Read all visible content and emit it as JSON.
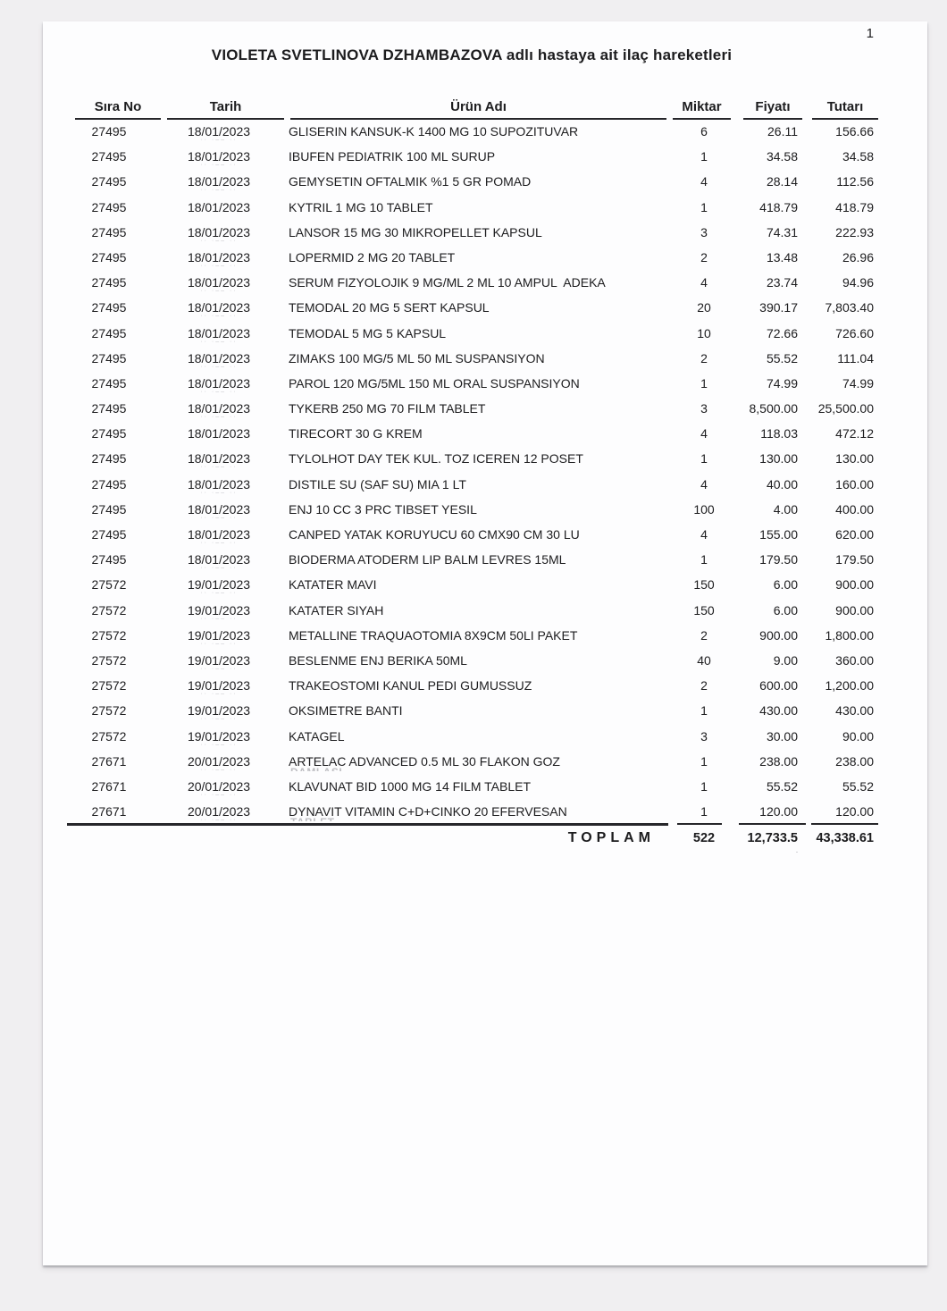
{
  "page": {
    "number": "1"
  },
  "document": {
    "title": "VIOLETA SVETLINOVA DZHAMBAZOVA adlı hastaya ait ilaç hareketleri"
  },
  "table": {
    "columns": {
      "sira": "Sıra No",
      "tarih": "Tarih",
      "urun": "Ürün Adı",
      "miktar": "Miktar",
      "fiyat": "Fiyatı",
      "tutar": "Tutarı"
    },
    "date_ghost": "·· ·–– ··",
    "rows": [
      {
        "sira": "27495",
        "tarih": "18/01/2023",
        "urun": "GLISERIN KANSUK-K 1400 MG 10 SUPOZITUVAR",
        "miktar": "6",
        "fiyat": "26.11",
        "tutar": "156.66",
        "ghost": true,
        "ghost2": ""
      },
      {
        "sira": "27495",
        "tarih": "18/01/2023",
        "urun": "IBUFEN PEDIATRIK 100 ML SURUP",
        "miktar": "1",
        "fiyat": "34.58",
        "tutar": "34.58",
        "ghost": true,
        "ghost2": ""
      },
      {
        "sira": "27495",
        "tarih": "18/01/2023",
        "urun": "GEMYSETIN OFTALMIK %1 5 GR POMAD",
        "miktar": "4",
        "fiyat": "28.14",
        "tutar": "112.56",
        "ghost": true,
        "ghost2": ""
      },
      {
        "sira": "27495",
        "tarih": "18/01/2023",
        "urun": "KYTRIL 1 MG 10 TABLET",
        "miktar": "1",
        "fiyat": "418.79",
        "tutar": "418.79",
        "ghost": false,
        "ghost2": ""
      },
      {
        "sira": "27495",
        "tarih": "18/01/2023",
        "urun": "LANSOR 15 MG 30 MIKROPELLET KAPSUL",
        "miktar": "3",
        "fiyat": "74.31",
        "tutar": "222.93",
        "ghost": true,
        "ghost2": ""
      },
      {
        "sira": "27495",
        "tarih": "18/01/2023",
        "urun": "LOPERMID 2 MG 20 TABLET",
        "miktar": "2",
        "fiyat": "13.48",
        "tutar": "26.96",
        "ghost": true,
        "ghost2": ""
      },
      {
        "sira": "27495",
        "tarih": "18/01/2023",
        "urun": "SERUM FIZYOLOJIK 9 MG/ML 2 ML 10 AMPUL  ADEKA",
        "miktar": "4",
        "fiyat": "23.74",
        "tutar": "94.96",
        "ghost": true,
        "ghost2": ""
      },
      {
        "sira": "27495",
        "tarih": "18/01/2023",
        "urun": "TEMODAL 20 MG 5 SERT KAPSUL",
        "miktar": "20",
        "fiyat": "390.17",
        "tutar": "7,803.40",
        "ghost": true,
        "ghost2": ""
      },
      {
        "sira": "27495",
        "tarih": "18/01/2023",
        "urun": "TEMODAL 5 MG 5 KAPSUL",
        "miktar": "10",
        "fiyat": "72.66",
        "tutar": "726.60",
        "ghost": true,
        "ghost2": ""
      },
      {
        "sira": "27495",
        "tarih": "18/01/2023",
        "urun": "ZIMAKS 100 MG/5 ML 50 ML SUSPANSIYON",
        "miktar": "2",
        "fiyat": "55.52",
        "tutar": "111.04",
        "ghost": true,
        "ghost2": ""
      },
      {
        "sira": "27495",
        "tarih": "18/01/2023",
        "urun": "PAROL 120 MG/5ML 150 ML ORAL SUSPANSIYON",
        "miktar": "1",
        "fiyat": "74.99",
        "tutar": "74.99",
        "ghost": true,
        "ghost2": ""
      },
      {
        "sira": "27495",
        "tarih": "18/01/2023",
        "urun": "TYKERB 250 MG 70 FILM TABLET",
        "miktar": "3",
        "fiyat": "8,500.00",
        "tutar": "25,500.00",
        "ghost": true,
        "ghost2": ""
      },
      {
        "sira": "27495",
        "tarih": "18/01/2023",
        "urun": "TIRECORT 30 G KREM",
        "miktar": "4",
        "fiyat": "118.03",
        "tutar": "472.12",
        "ghost": false,
        "ghost2": ""
      },
      {
        "sira": "27495",
        "tarih": "18/01/2023",
        "urun": "TYLOLHOT DAY TEK KUL. TOZ ICEREN 12 POSET",
        "miktar": "1",
        "fiyat": "130.00",
        "tutar": "130.00",
        "ghost": true,
        "ghost2": ""
      },
      {
        "sira": "27495",
        "tarih": "18/01/2023",
        "urun": "DISTILE SU (SAF SU) MIA 1 LT",
        "miktar": "4",
        "fiyat": "40.00",
        "tutar": "160.00",
        "ghost": true,
        "ghost2": ""
      },
      {
        "sira": "27495",
        "tarih": "18/01/2023",
        "urun": "ENJ 10 CC 3 PRC TIBSET YESIL",
        "miktar": "100",
        "fiyat": "4.00",
        "tutar": "400.00",
        "ghost": true,
        "ghost2": ""
      },
      {
        "sira": "27495",
        "tarih": "18/01/2023",
        "urun": "CANPED YATAK KORUYUCU 60 CMX90 CM 30 LU",
        "miktar": "4",
        "fiyat": "155.00",
        "tutar": "620.00",
        "ghost": true,
        "ghost2": ""
      },
      {
        "sira": "27495",
        "tarih": "18/01/2023",
        "urun": "BIODERMA ATODERM LIP BALM LEVRES 15ML",
        "miktar": "1",
        "fiyat": "179.50",
        "tutar": "179.50",
        "ghost": true,
        "ghost2": ""
      },
      {
        "sira": "27572",
        "tarih": "19/01/2023",
        "urun": "KATATER MAVI",
        "miktar": "150",
        "fiyat": "6.00",
        "tutar": "900.00",
        "ghost": true,
        "ghost2": ""
      },
      {
        "sira": "27572",
        "tarih": "19/01/2023",
        "urun": "KATATER SIYAH",
        "miktar": "150",
        "fiyat": "6.00",
        "tutar": "900.00",
        "ghost": true,
        "ghost2": ""
      },
      {
        "sira": "27572",
        "tarih": "19/01/2023",
        "urun": "METALLINE TRAQUAOTOMIA 8X9CM 50LI PAKET",
        "miktar": "2",
        "fiyat": "900.00",
        "tutar": "1,800.00",
        "ghost": true,
        "ghost2": ""
      },
      {
        "sira": "27572",
        "tarih": "19/01/2023",
        "urun": "BESLENME ENJ BERIKA 50ML",
        "miktar": "40",
        "fiyat": "9.00",
        "tutar": "360.00",
        "ghost": true,
        "ghost2": ""
      },
      {
        "sira": "27572",
        "tarih": "19/01/2023",
        "urun": "TRAKEOSTOMI KANUL PEDI GUMUSSUZ",
        "miktar": "2",
        "fiyat": "600.00",
        "tutar": "1,200.00",
        "ghost": true,
        "ghost2": ""
      },
      {
        "sira": "27572",
        "tarih": "19/01/2023",
        "urun": "OKSIMETRE BANTI",
        "miktar": "1",
        "fiyat": "430.00",
        "tutar": "430.00",
        "ghost": true,
        "ghost2": ""
      },
      {
        "sira": "27572",
        "tarih": "19/01/2023",
        "urun": "KATAGEL",
        "miktar": "3",
        "fiyat": "30.00",
        "tutar": "90.00",
        "ghost": true,
        "ghost2": ""
      },
      {
        "sira": "27671",
        "tarih": "20/01/2023",
        "urun": "ARTELAC ADVANCED 0.5 ML 30 FLAKON GOZ",
        "miktar": "1",
        "fiyat": "238.00",
        "tutar": "238.00",
        "ghost": true,
        "ghost2": "DAMLASI"
      },
      {
        "sira": "27671",
        "tarih": "20/01/2023",
        "urun": "KLAVUNAT BID 1000 MG 14 FILM TABLET",
        "miktar": "1",
        "fiyat": "55.52",
        "tutar": "55.52",
        "ghost": true,
        "ghost2": ""
      },
      {
        "sira": "27671",
        "tarih": "20/01/2023",
        "urun": "DYNAVIT VITAMIN C+D+CINKO 20 EFERVESAN",
        "miktar": "1",
        "fiyat": "120.00",
        "tutar": "120.00",
        "ghost": true,
        "ghost2": "TABLET"
      }
    ],
    "total": {
      "label": "TOPLAM",
      "miktar": "522",
      "fiyat": "12,733.5",
      "tutar": "43,338.61",
      "ghost": "·"
    }
  },
  "colors": {
    "canvas_bg": "#f0eff1",
    "page_bg": "#fdfdfe",
    "text": "#1c1c1e",
    "rule": "#26262a",
    "ghost": "#c4c4c8"
  }
}
